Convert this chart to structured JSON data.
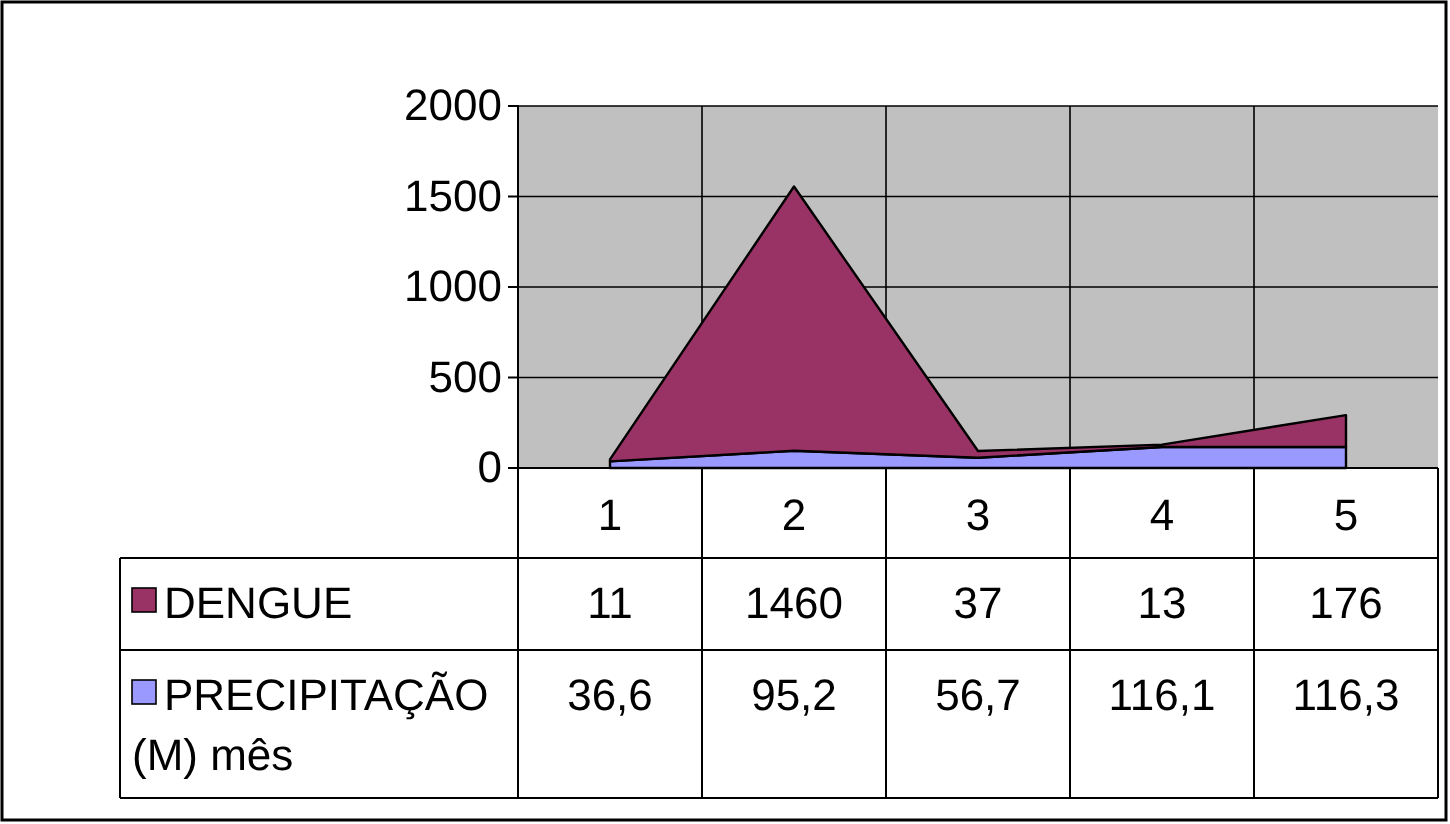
{
  "chart_data": {
    "type": "area",
    "stacked": true,
    "categories": [
      "1",
      "2",
      "3",
      "4",
      "5"
    ],
    "series": [
      {
        "name": "PRECIPITAÇÃO (M) mês",
        "color": "#9999ff",
        "values": [
          36.6,
          95.2,
          56.7,
          116.1,
          116.3
        ],
        "value_labels": [
          "36,6",
          "95,2",
          "56,7",
          "116,1",
          "116,3"
        ]
      },
      {
        "name": "DENGUE",
        "color": "#993366",
        "values": [
          11,
          1460,
          37,
          13,
          176
        ],
        "value_labels": [
          "11",
          "1460",
          "37",
          "13",
          "176"
        ]
      }
    ],
    "ylim": [
      0,
      2000
    ],
    "yticks": [
      0,
      500,
      1000,
      1500,
      2000
    ],
    "grid": true,
    "legend": "bottom"
  }
}
